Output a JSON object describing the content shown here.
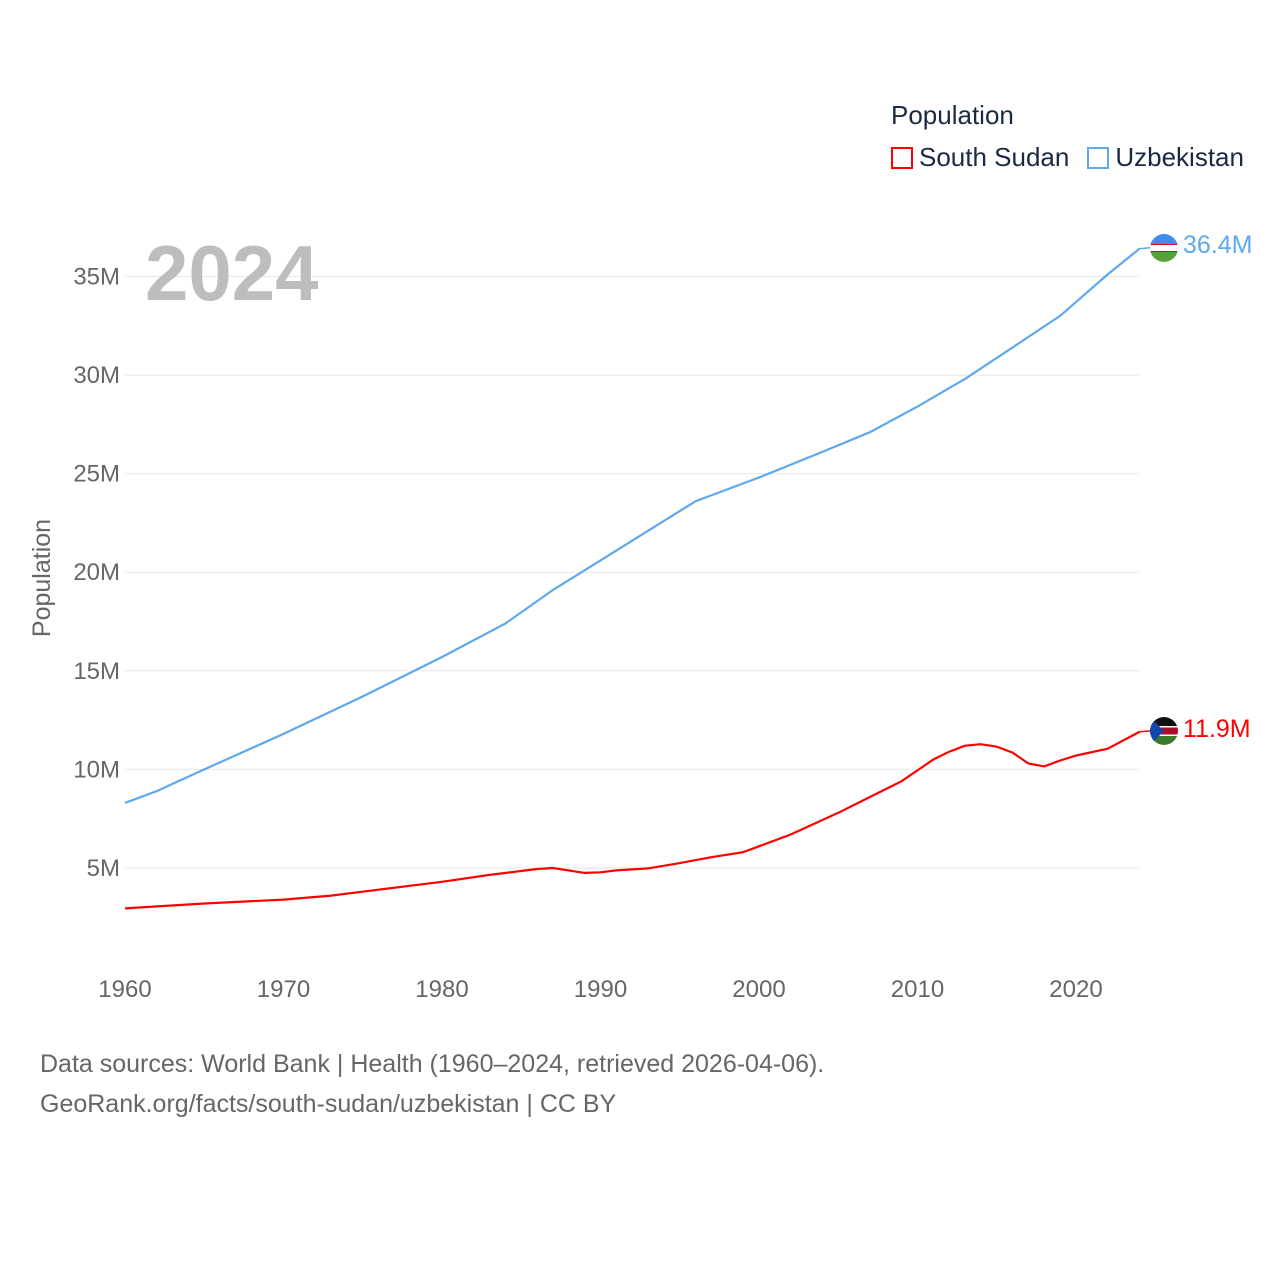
{
  "chart_data": {
    "type": "line",
    "title": "",
    "year_label": "2024",
    "xlabel": "",
    "ylabel": "Population",
    "xlim": [
      1960,
      2024
    ],
    "ylim": [
      0,
      37000000
    ],
    "x_ticks": [
      1960,
      1970,
      1980,
      1990,
      2000,
      2010,
      2020
    ],
    "x_tick_labels": [
      "1960",
      "1970",
      "1980",
      "1990",
      "2000",
      "2010",
      "2020"
    ],
    "y_ticks": [
      5000000,
      10000000,
      15000000,
      20000000,
      25000000,
      30000000,
      35000000
    ],
    "y_tick_labels": [
      "5M",
      "10M",
      "15M",
      "20M",
      "25M",
      "30M",
      "35M"
    ],
    "grid": true,
    "legend_title": "Population",
    "legend_position": "top-right",
    "series": [
      {
        "name": "South Sudan",
        "color": "#ff0000",
        "end_label": "11.9M",
        "flag": "south-sudan-flag",
        "x": [
          1960,
          1965,
          1970,
          1973,
          1976,
          1980,
          1983,
          1986,
          1987,
          1989,
          1990,
          1991,
          1993,
          1995,
          1997,
          1999,
          2002,
          2005,
          2007,
          2009,
          2011,
          2012,
          2013,
          2014,
          2015,
          2016,
          2017,
          2018,
          2019,
          2020,
          2022,
          2024
        ],
        "y": [
          2.95,
          3.2,
          3.4,
          3.6,
          3.9,
          4.3,
          4.65,
          4.95,
          5.0,
          4.75,
          4.78,
          4.88,
          4.98,
          5.25,
          5.55,
          5.8,
          6.7,
          7.8,
          8.6,
          9.4,
          10.5,
          10.9,
          11.2,
          11.28,
          11.15,
          10.85,
          10.3,
          10.15,
          10.45,
          10.7,
          11.05,
          11.9
        ]
      },
      {
        "name": "Uzbekistan",
        "color": "#5ea8ee",
        "end_label": "36.4M",
        "flag": "uzbekistan-flag",
        "x": [
          1960,
          1962,
          1965,
          1970,
          1975,
          1980,
          1984,
          1987,
          1990,
          1993,
          1996,
          2000,
          2004,
          2007,
          2010,
          2013,
          2016,
          2019,
          2022,
          2024
        ],
        "y": [
          8.3,
          8.9,
          10.0,
          11.8,
          13.7,
          15.7,
          17.4,
          19.1,
          20.6,
          22.1,
          23.6,
          24.8,
          26.1,
          27.1,
          28.4,
          29.8,
          31.4,
          33.0,
          35.1,
          36.4
        ]
      }
    ],
    "y_unit_multiplier": 1000000
  },
  "footer": {
    "line1": "Data sources: World Bank | Health (1960–2024, retrieved 2026-04-06).",
    "line2": "GeoRank.org/facts/south-sudan/uzbekistan | CC BY"
  }
}
